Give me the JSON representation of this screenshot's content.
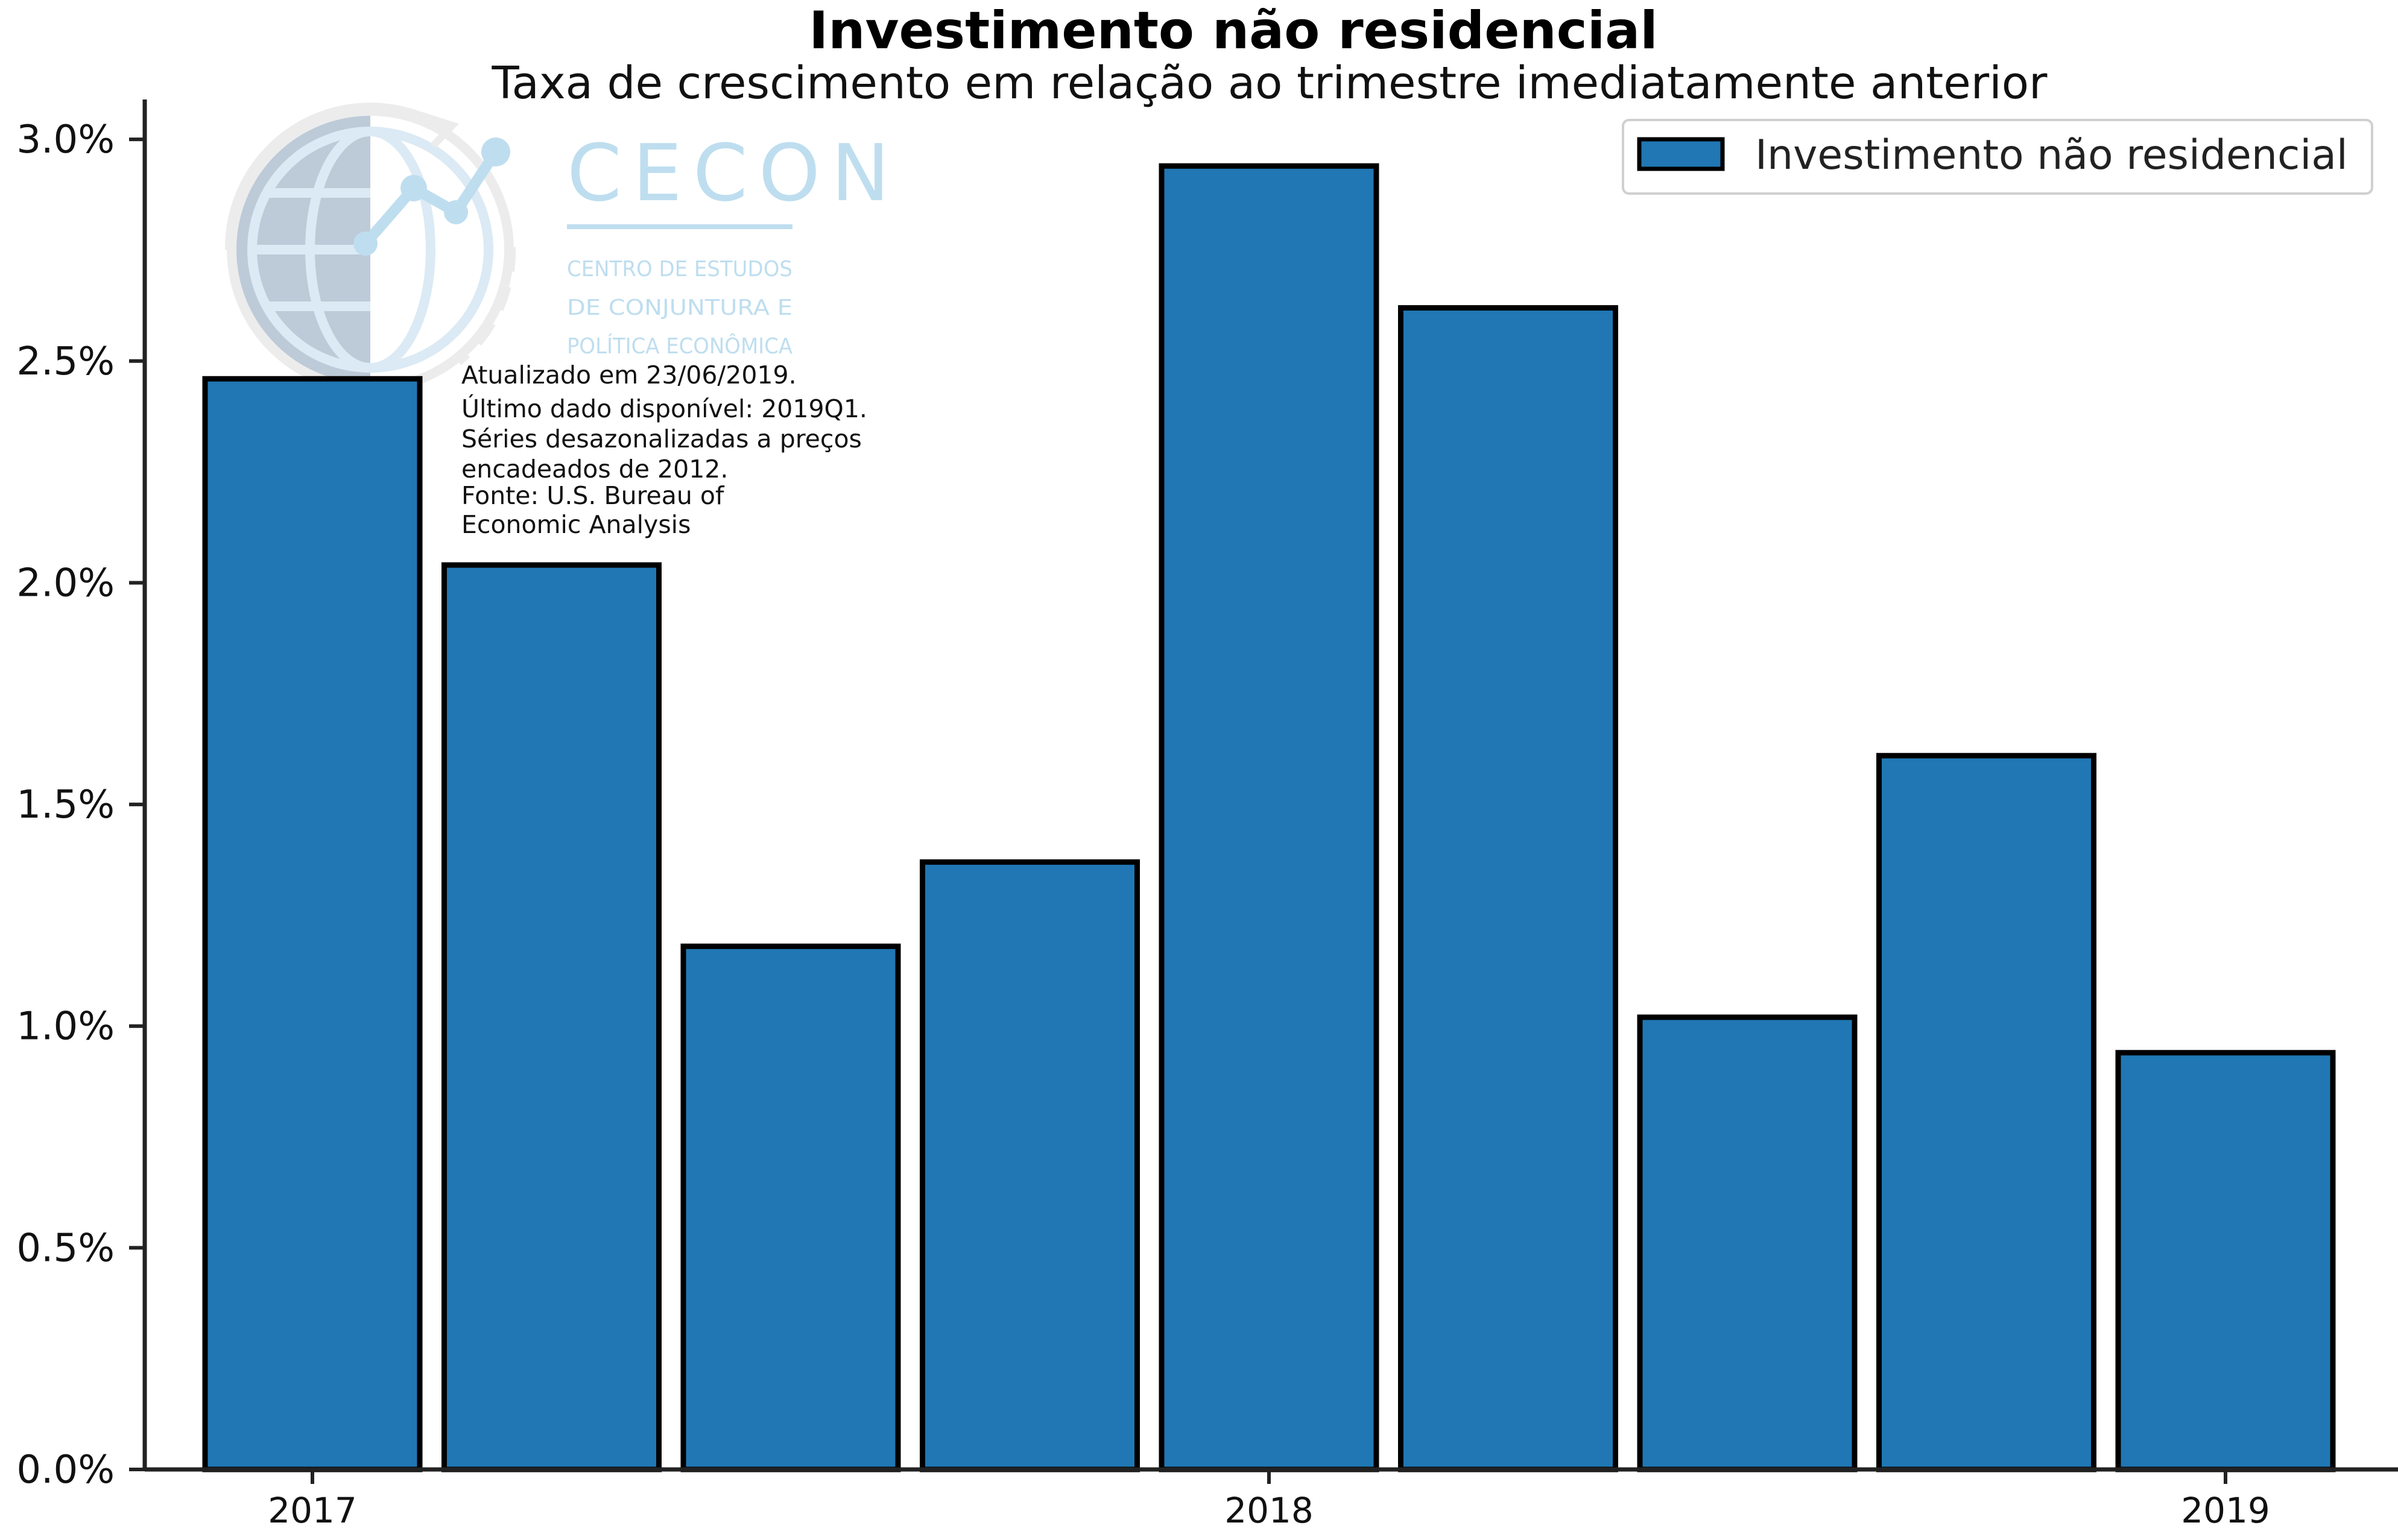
{
  "chart_data": {
    "type": "bar",
    "title": "Investimento não residencial",
    "subtitle": "Taxa de crescimento em relação ao trimestre imediatamente anterior",
    "xlabel": "",
    "ylabel": "",
    "categories": [
      "2017Q1",
      "2017Q2",
      "2017Q3",
      "2017Q4",
      "2018Q1",
      "2018Q2",
      "2018Q3",
      "2018Q4",
      "2019Q1"
    ],
    "series": [
      {
        "name": "Investimento não residencial",
        "values": [
          2.46,
          2.04,
          1.18,
          1.37,
          2.94,
          2.62,
          1.02,
          1.61,
          0.94
        ],
        "color": "#2077b4",
        "edge_color": "#000000"
      }
    ],
    "x_tick_labels": [
      {
        "label": "2017",
        "category_index": 0
      },
      {
        "label": "2018",
        "category_index": 4
      },
      {
        "label": "2019",
        "category_index": 8
      }
    ],
    "y_tick_labels": [
      "0.0%",
      "0.5%",
      "1.0%",
      "1.5%",
      "2.0%",
      "2.5%",
      "3.0%"
    ],
    "y_ticks": [
      0,
      0.5,
      1.0,
      1.5,
      2.0,
      2.5,
      3.0
    ],
    "ylim": [
      0,
      3.09
    ],
    "grid": false,
    "legend_position": "top-right"
  },
  "annotation": {
    "lines": [
      "Atualizado em 23/06/2019.",
      "Último dado disponível: 2019Q1.",
      "Séries desazonalizadas a preços",
      "encadeados de 2012.",
      "Fonte: U.S. Bureau of",
      "Economic Analysis"
    ]
  },
  "watermark": {
    "title": "CECON",
    "subtitle_lines": [
      "CENTRO DE ESTUDOS",
      "DE CONJUNTURA E",
      "POLÍTICA ECONÔMICA"
    ],
    "color": "#a9d3ea"
  },
  "colors": {
    "bar_fill": "#2077b4",
    "bar_edge": "#000000",
    "axis": "#222222"
  }
}
